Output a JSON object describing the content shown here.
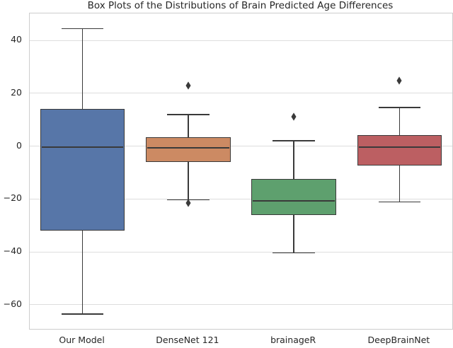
{
  "chart_data": {
    "type": "box",
    "title": "Box Plots of the Distributions of Brain Predicted Age Differences",
    "categories": [
      "Our Model",
      "DenseNet 121",
      "brainageR",
      "DeepBrainNet"
    ],
    "series": [
      {
        "name": "Our Model",
        "color": "#5776A8",
        "whisker_low": -63.5,
        "q1": -32,
        "median": -0.3,
        "q3": 14,
        "whisker_high": 44.5,
        "outliers": []
      },
      {
        "name": "DenseNet 121",
        "color": "#CC8A63",
        "whisker_low": -20.3,
        "q1": -6,
        "median": -0.5,
        "q3": 3.5,
        "whisker_high": 12,
        "outliers": [
          23,
          -21.5
        ]
      },
      {
        "name": "brainageR",
        "color": "#5EA06E",
        "whisker_low": -40.3,
        "q1": -26,
        "median": -20.8,
        "q3": -12.5,
        "whisker_high": 2.1,
        "outliers": [
          11.2
        ]
      },
      {
        "name": "DeepBrainNet",
        "color": "#BC5F62",
        "whisker_low": -21.1,
        "q1": -7.2,
        "median": -0.3,
        "q3": 4.3,
        "whisker_high": 14.7,
        "outliers": [
          24.8
        ]
      }
    ],
    "y_axis": {
      "tick_values": [
        40,
        20,
        0,
        -20,
        -40,
        -60
      ],
      "tick_labels": [
        "40",
        "20",
        "0",
        "−20",
        "−40",
        "−60"
      ]
    },
    "ylim": [
      -69.1,
      50.2
    ],
    "grid": true,
    "legend_position": "none",
    "box_width_fraction": 0.8,
    "style": {
      "line_color": "#3a3a3a",
      "grid_color": "#dddddd",
      "border_color": "#cdcdcd",
      "text_color": "#262626",
      "background": "#ffffff"
    }
  }
}
